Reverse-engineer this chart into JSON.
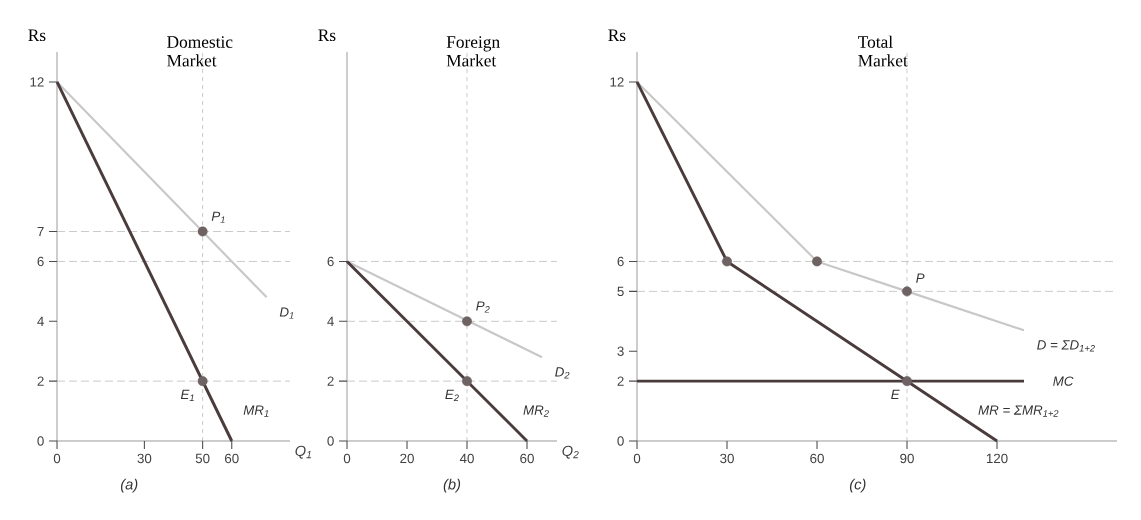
{
  "chart_data": [
    {
      "type": "line",
      "title": "Domestic Market",
      "ylabel": "Rs",
      "xlabel": "Q$_{1}$",
      "xlim": [
        0,
        80
      ],
      "ylim": [
        0,
        13
      ],
      "xticks": [
        0,
        30,
        50,
        60
      ],
      "yticks": [
        0,
        2,
        4,
        6,
        7,
        12
      ],
      "grid": false,
      "series": [
        {
          "color": "#c8c8c8",
          "x": [
            0,
            72
          ],
          "values": [
            12,
            4.8
          ]
        },
        {
          "color": "#4a3c3c",
          "x": [
            0,
            60
          ],
          "values": [
            12,
            0
          ]
        },
        {
          "type": "scatter",
          "color": "#6e6262",
          "marker": "circle",
          "x": [
            50,
            50
          ],
          "values": [
            7,
            2
          ]
        }
      ],
      "ref_lines": [
        {
          "axis": "y",
          "value": 7,
          "color": "#9a9a9a",
          "line_style": "dashed"
        },
        {
          "axis": "y",
          "value": 6,
          "color": "#9a9a9a",
          "line_style": "dashed"
        },
        {
          "axis": "y",
          "value": 2,
          "color": "#9a9a9a",
          "line_style": "dashed"
        },
        {
          "axis": "x",
          "value": 50,
          "color": "#9a9a9a",
          "line_style": "dashed"
        }
      ],
      "annotations": [
        {
          "text": "P$_{1}$",
          "x": 50,
          "y": 7
        },
        {
          "text": "E$_{1}$",
          "x": 50,
          "y": 2
        },
        {
          "text": "D$_{1}$",
          "x": 72,
          "y": 4.8
        },
        {
          "text": "MR$_{1}$",
          "x": 55,
          "y": 1
        },
        "(a)"
      ]
    },
    {
      "type": "line",
      "title": "Foreign Market",
      "ylabel": "Rs",
      "xlabel": "Q$_{2}$",
      "xlim": [
        0,
        70
      ],
      "ylim": [
        0,
        13
      ],
      "xticks": [
        0,
        20,
        40,
        60
      ],
      "yticks": [
        0,
        2,
        4,
        6
      ],
      "grid": false,
      "series": [
        {
          "color": "#c8c8c8",
          "x": [
            0,
            65
          ],
          "values": [
            6,
            2.8
          ]
        },
        {
          "color": "#4a3c3c",
          "x": [
            0,
            60
          ],
          "values": [
            6,
            0
          ]
        },
        {
          "type": "scatter",
          "color": "#6e6262",
          "marker": "circle",
          "x": [
            40,
            40
          ],
          "values": [
            4,
            2
          ]
        }
      ],
      "ref_lines": [
        {
          "axis": "y",
          "value": 6,
          "color": "#9a9a9a",
          "line_style": "dashed"
        },
        {
          "axis": "y",
          "value": 4,
          "color": "#9a9a9a",
          "line_style": "dashed"
        },
        {
          "axis": "y",
          "value": 2,
          "color": "#9a9a9a",
          "line_style": "dashed"
        },
        {
          "axis": "x",
          "value": 40,
          "color": "#9a9a9a",
          "line_style": "dashed"
        }
      ],
      "annotations": [
        {
          "text": "P$_{2}$",
          "x": 40,
          "y": 4
        },
        {
          "text": "E$_{2}$",
          "x": 40,
          "y": 2
        },
        {
          "text": "D$_{2}$",
          "x": 65,
          "y": 2.8
        },
        {
          "text": "MR$_{2}$",
          "x": 50,
          "y": 1
        },
        "(b)"
      ]
    },
    {
      "type": "line",
      "title": "Total Market",
      "ylabel": "Rs",
      "xlim": [
        0,
        160
      ],
      "ylim": [
        0,
        13
      ],
      "xticks": [
        0,
        30,
        60,
        90,
        120
      ],
      "yticks": [
        0,
        2,
        3,
        5,
        6,
        12
      ],
      "grid": false,
      "series": [
        {
          "color": "#c8c8c8",
          "x": [
            0,
            60,
            90,
            129
          ],
          "values": [
            12,
            6,
            5,
            3.7
          ]
        },
        {
          "color": "#4a3c3c",
          "x": [
            0,
            30,
            120
          ],
          "values": [
            12,
            6,
            0
          ]
        },
        {
          "color": "#4a3c3c",
          "x": [
            0,
            129
          ],
          "values": [
            2,
            2
          ]
        },
        {
          "type": "scatter",
          "color": "#6e6262",
          "marker": "circle",
          "x": [
            30,
            60,
            90,
            90
          ],
          "values": [
            6,
            6,
            5,
            2
          ]
        }
      ],
      "ref_lines": [
        {
          "axis": "y",
          "value": 6,
          "color": "#9a9a9a",
          "line_style": "dashed"
        },
        {
          "axis": "y",
          "value": 5,
          "color": "#9a9a9a",
          "line_style": "dashed"
        },
        {
          "axis": "x",
          "value": 90,
          "color": "#9a9a9a",
          "line_style": "dashed"
        }
      ],
      "annotations": [
        {
          "text": "P",
          "x": 90,
          "y": 5
        },
        {
          "text": "E",
          "x": 90,
          "y": 2
        },
        {
          "text": "D = ΣD$_{1+2}$",
          "x": 129,
          "y": 3.7
        },
        {
          "text": "MC",
          "x": 129,
          "y": 2
        },
        {
          "text": "MR = ΣMR$_{1+2}$",
          "x": 105,
          "y": 1
        },
        "(c)"
      ]
    }
  ]
}
